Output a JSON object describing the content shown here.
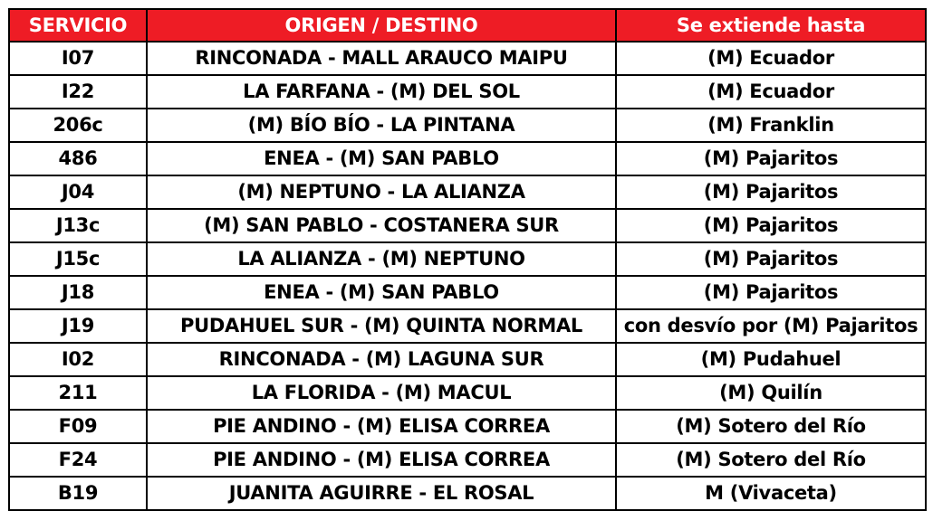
{
  "header_color": "#ee1c25",
  "headers": [
    "SERVICIO",
    "ORIGEN / DESTINO",
    "Se extiende hasta"
  ],
  "rows": [
    {
      "servicio": "I07",
      "origen_destino": "RINCONADA - MALL ARAUCO MAIPU",
      "extiende": "(M) Ecuador"
    },
    {
      "servicio": "I22",
      "origen_destino": "LA FARFANA - (M) DEL SOL",
      "extiende": "(M) Ecuador"
    },
    {
      "servicio": "206c",
      "origen_destino": "(M) BÍO BÍO - LA PINTANA",
      "extiende": "(M) Franklin"
    },
    {
      "servicio": "486",
      "origen_destino": "ENEA - (M) SAN PABLO",
      "extiende": "(M) Pajaritos"
    },
    {
      "servicio": "J04",
      "origen_destino": "(M) NEPTUNO - LA ALIANZA",
      "extiende": "(M) Pajaritos"
    },
    {
      "servicio": "J13c",
      "origen_destino": "(M) SAN PABLO - COSTANERA SUR",
      "extiende": "(M) Pajaritos"
    },
    {
      "servicio": "J15c",
      "origen_destino": "LA ALIANZA - (M) NEPTUNO",
      "extiende": "(M) Pajaritos"
    },
    {
      "servicio": "J18",
      "origen_destino": "ENEA - (M) SAN PABLO",
      "extiende": "(M) Pajaritos"
    },
    {
      "servicio": "J19",
      "origen_destino": "PUDAHUEL SUR - (M) QUINTA NORMAL",
      "extiende": "con desvío por (M) Pajaritos"
    },
    {
      "servicio": "I02",
      "origen_destino": "RINCONADA - (M) LAGUNA SUR",
      "extiende": "(M) Pudahuel"
    },
    {
      "servicio": "211",
      "origen_destino": "LA FLORIDA - (M) MACUL",
      "extiende": "(M) Quilín"
    },
    {
      "servicio": "F09",
      "origen_destino": "PIE ANDINO - (M) ELISA CORREA",
      "extiende": "(M) Sotero del Río"
    },
    {
      "servicio": "F24",
      "origen_destino": "PIE ANDINO - (M) ELISA CORREA",
      "extiende": "(M) Sotero del Río"
    },
    {
      "servicio": "B19",
      "origen_destino": "JUANITA AGUIRRE - EL ROSAL",
      "extiende": "M (Vivaceta)"
    }
  ]
}
